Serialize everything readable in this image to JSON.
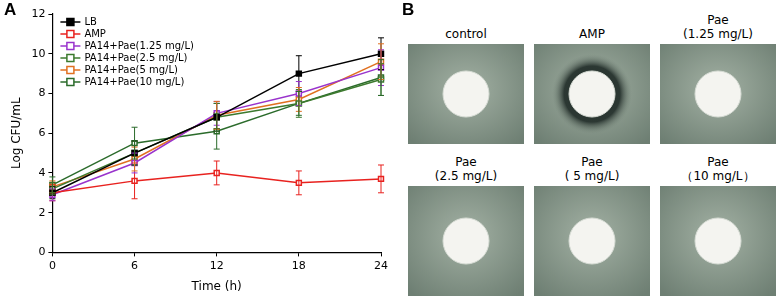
{
  "chart_data": {
    "type": "line",
    "x_label": "Time (h)",
    "y_label": "Log CFU/mL",
    "x": [
      0,
      6,
      12,
      18,
      24
    ],
    "xlim": [
      0,
      24
    ],
    "xticks": [
      0,
      6,
      12,
      18,
      24
    ],
    "ylim": [
      0,
      12
    ],
    "yticks": [
      0,
      2,
      4,
      6,
      8,
      10,
      12
    ],
    "grid": false,
    "legend": "top-left",
    "series": [
      {
        "name": "LB",
        "color": "#000000",
        "marker": "square",
        "values": [
          3.0,
          5.0,
          6.8,
          9.0,
          10.0
        ],
        "errors": [
          0.3,
          0.6,
          0.7,
          0.9,
          0.8
        ]
      },
      {
        "name": "AMP",
        "color": "#e8221f",
        "marker": "open_square",
        "values": [
          3.0,
          3.6,
          4.0,
          3.5,
          3.7
        ],
        "errors": [
          0.4,
          0.9,
          0.6,
          0.6,
          0.7
        ]
      },
      {
        "name": "PA14+Pae(1.25 mg/L)",
        "color": "#9933cc",
        "marker": "open_square",
        "values": [
          2.9,
          4.5,
          7.0,
          8.0,
          9.3
        ],
        "errors": [
          0.3,
          0.5,
          0.6,
          0.6,
          0.9
        ]
      },
      {
        "name": "PA14+Pae(2.5 mg/L)",
        "color": "#3c7a2e",
        "marker": "open_square",
        "values": [
          3.2,
          5.0,
          6.8,
          7.5,
          8.7
        ],
        "errors": [
          0.3,
          0.6,
          0.7,
          0.7,
          0.8
        ]
      },
      {
        "name": "PA14+Pae(5 mg/L)",
        "color": "#e07020",
        "marker": "open_square",
        "values": [
          3.3,
          4.7,
          6.9,
          7.7,
          9.6
        ],
        "errors": [
          0.3,
          0.6,
          0.7,
          0.6,
          0.9
        ]
      },
      {
        "name": "PA14+Pae(10 mg/L)",
        "color": "#2b6b2b",
        "marker": "open_square",
        "values": [
          3.4,
          5.5,
          6.1,
          7.5,
          8.8
        ],
        "errors": [
          0.4,
          0.8,
          0.9,
          0.6,
          0.9
        ]
      }
    ]
  },
  "panel_labels": [
    "A",
    "B"
  ],
  "plates": [
    {
      "label": [
        "control"
      ],
      "inhibition_zone": false
    },
    {
      "label": [
        "AMP"
      ],
      "inhibition_zone": true
    },
    {
      "label": [
        "Pae",
        "(1.25 mg/L)"
      ],
      "inhibition_zone": false
    },
    {
      "label": [
        "Pae",
        "(2.5 mg/L)"
      ],
      "inhibition_zone": false
    },
    {
      "label": [
        "Pae",
        "( 5 mg/L)"
      ],
      "inhibition_zone": false
    },
    {
      "label": [
        "Pae",
        "（10 mg/L）"
      ],
      "inhibition_zone": false
    }
  ]
}
